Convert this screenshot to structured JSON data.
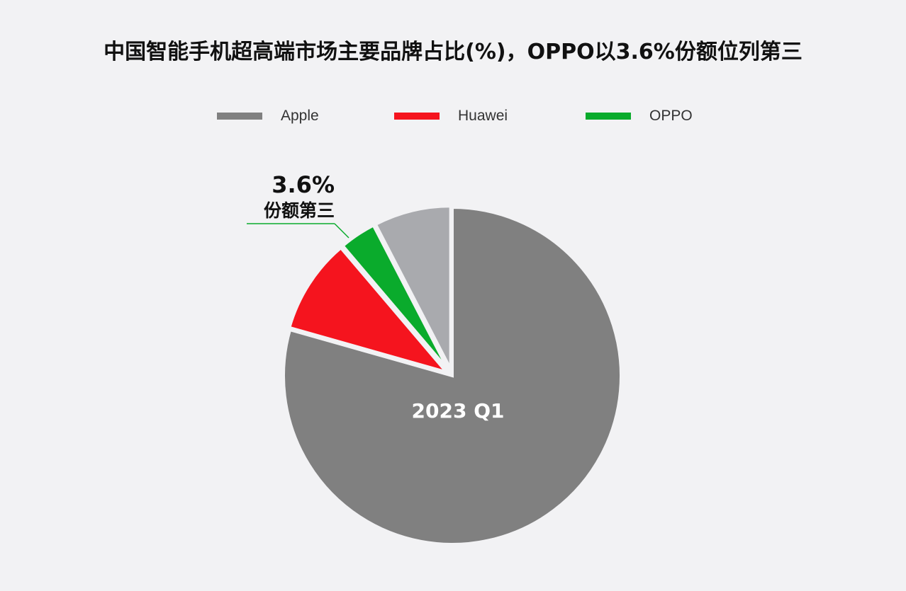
{
  "title": "中国智能手机超高端市场主要品牌占比(%)，OPPO以3.6%份额位列第三",
  "chart_data": {
    "type": "pie",
    "title": "中国智能手机超高端市场主要品牌占比(%)，OPPO以3.6%份额位列第三",
    "center_label": "2023 Q1",
    "slices": [
      {
        "name": "Apple",
        "value": 79.4,
        "color": "#808080",
        "legend": true
      },
      {
        "name": "Huawei",
        "value": 9.4,
        "color": "#f5141e",
        "legend": true
      },
      {
        "name": "OPPO",
        "value": 3.6,
        "color": "#0aab2c",
        "legend": true
      },
      {
        "name": "",
        "value": 7.6,
        "color": "#a9aaae",
        "legend": false
      }
    ],
    "legend_position": "top",
    "annotation": {
      "value": "3.6%",
      "text": "份额第三",
      "color": "#0aab2c"
    }
  }
}
